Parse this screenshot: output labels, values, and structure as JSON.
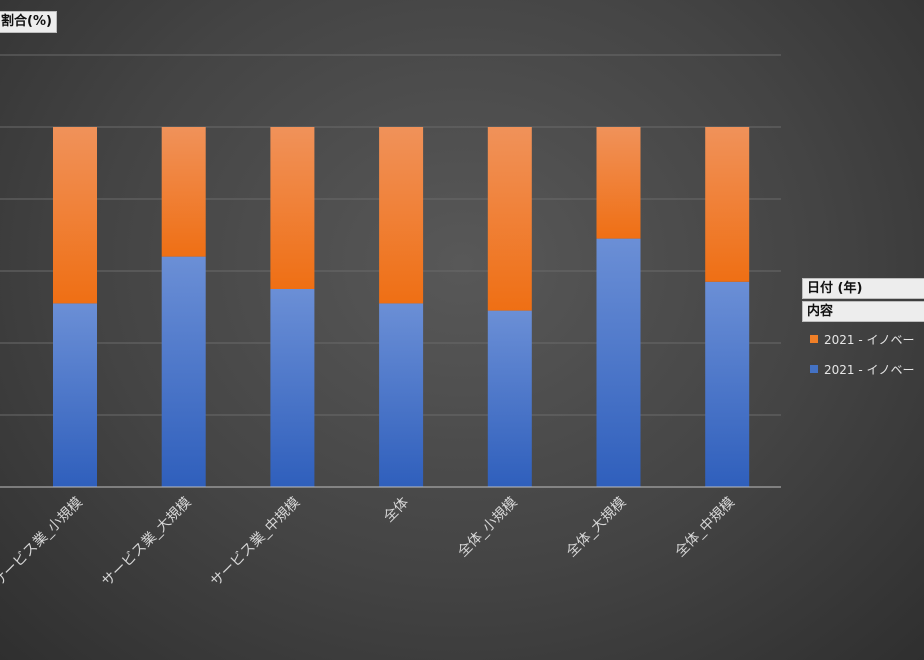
{
  "pivot_fields": {
    "value_field": "割合(%)",
    "filter_date": "日付 (年)",
    "filter_content": "内容"
  },
  "colors": {
    "orange": "#f07f27",
    "blue": "#4472c4",
    "grid": "#6a6a6a",
    "axis": "#bfbfbf"
  },
  "chart_data": {
    "type": "bar",
    "stacked": true,
    "categories": [
      "サービス業_小規模",
      "サービス業_大規模",
      "サービス業_中規模",
      "全体",
      "全体_小規模",
      "全体_大規模",
      "全体_中規模"
    ],
    "series": [
      {
        "name": "2021 - イノベー",
        "values": [
          51,
          64,
          55,
          51,
          49,
          69,
          57
        ]
      },
      {
        "name": "2021 - イノベー",
        "values": [
          49,
          36,
          45,
          49,
          51,
          31,
          43
        ]
      }
    ],
    "ylim": [
      0,
      120
    ],
    "grid": true,
    "legend": "right"
  }
}
